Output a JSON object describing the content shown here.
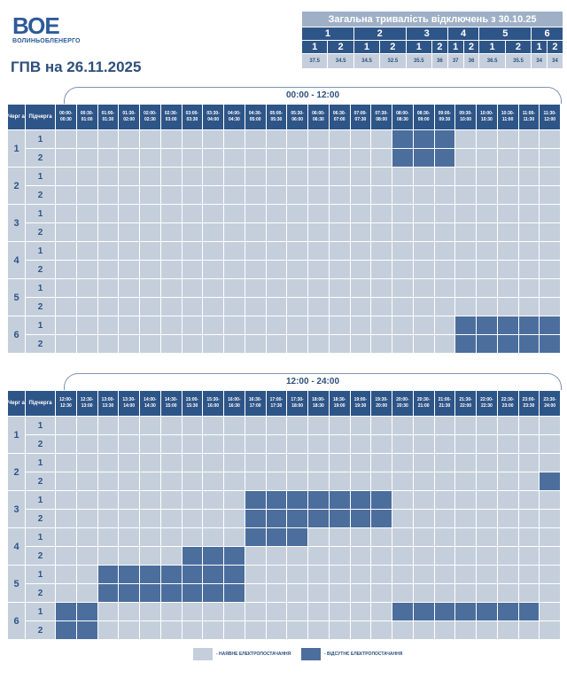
{
  "logo": {
    "mark": "ВОЕ",
    "text": "ВОЛИНЬОБЛЕНЕРГО"
  },
  "title": "ГПВ на 26.11.2025",
  "totals": {
    "caption": "Загальна тривалість відключень з 30.10.25",
    "queues": [
      "1",
      "2",
      "3",
      "4",
      "5",
      "6"
    ],
    "subqueues": [
      "1",
      "2",
      "1",
      "2",
      "1",
      "2",
      "1",
      "2",
      "1",
      "2",
      "1",
      "2"
    ],
    "values": [
      "37.5",
      "34.5",
      "34.5",
      "32.5",
      "35.5",
      "36",
      "37",
      "36",
      "36.5",
      "35.5",
      "34",
      "34"
    ]
  },
  "headers": {
    "queue": "Черг а",
    "subqueue": "Підчерга"
  },
  "sections": [
    {
      "title": "00:00 - 12:00",
      "slots": [
        "00:00- 00:30",
        "00:30- 01:00",
        "01:00- 01:30",
        "01:30- 02:00",
        "02:00- 02:30",
        "02:30- 03:00",
        "03:00- 03:30",
        "03:30- 04:00",
        "04:00- 04:30",
        "04:30- 05:00",
        "05:00- 05:30",
        "05:30- 06:00",
        "06:00- 06:30",
        "06:30- 07:00",
        "07:00- 07:30",
        "07:30- 08:00",
        "08:00- 08:30",
        "08:30- 09:00",
        "09:00- 09:30",
        "09:30- 10:00",
        "10:00- 10:30",
        "10:30- 11:00",
        "11:00- 11:30",
        "11:30- 12:00"
      ],
      "rows": [
        {
          "queue": "1",
          "sub": "1",
          "off": [
            16,
            17,
            18
          ]
        },
        {
          "queue": "1",
          "sub": "2",
          "off": [
            16,
            17,
            18
          ]
        },
        {
          "queue": "2",
          "sub": "1",
          "off": []
        },
        {
          "queue": "2",
          "sub": "2",
          "off": []
        },
        {
          "queue": "3",
          "sub": "1",
          "off": []
        },
        {
          "queue": "3",
          "sub": "2",
          "off": []
        },
        {
          "queue": "4",
          "sub": "1",
          "off": []
        },
        {
          "queue": "4",
          "sub": "2",
          "off": []
        },
        {
          "queue": "5",
          "sub": "1",
          "off": []
        },
        {
          "queue": "5",
          "sub": "2",
          "off": []
        },
        {
          "queue": "6",
          "sub": "1",
          "off": [
            19,
            20,
            21,
            22,
            23
          ]
        },
        {
          "queue": "6",
          "sub": "2",
          "off": [
            19,
            20,
            21,
            22,
            23
          ]
        }
      ]
    },
    {
      "title": "12:00 - 24:00",
      "slots": [
        "12:00- 12:30",
        "12:30- 13:00",
        "13:00- 13:30",
        "13:30- 14:00",
        "14:00- 14:30",
        "14:30- 15:00",
        "15:00- 15:30",
        "15:30- 16:00",
        "16:00- 16:30",
        "16:30- 17:00",
        "17:00- 17:30",
        "17:30- 18:00",
        "18:00- 18:30",
        "18:30- 19:00",
        "19:00- 19:30",
        "19:30- 20:00",
        "20:00- 20:30",
        "20:30- 21:00",
        "21:00- 21:30",
        "21:30- 22:00",
        "22:00- 22:30",
        "22:30- 23:00",
        "23:00- 23:30",
        "23:30- 24:00"
      ],
      "rows": [
        {
          "queue": "1",
          "sub": "1",
          "off": []
        },
        {
          "queue": "1",
          "sub": "2",
          "off": []
        },
        {
          "queue": "2",
          "sub": "1",
          "off": []
        },
        {
          "queue": "2",
          "sub": "2",
          "off": [
            23
          ]
        },
        {
          "queue": "3",
          "sub": "1",
          "off": [
            9,
            10,
            11,
            12,
            13,
            14,
            15
          ]
        },
        {
          "queue": "3",
          "sub": "2",
          "off": [
            9,
            10,
            11,
            12,
            13,
            14,
            15
          ]
        },
        {
          "queue": "4",
          "sub": "1",
          "off": [
            9,
            10,
            11
          ]
        },
        {
          "queue": "4",
          "sub": "2",
          "off": [
            6,
            7,
            8
          ]
        },
        {
          "queue": "5",
          "sub": "1",
          "off": [
            2,
            3,
            4,
            5,
            6,
            7,
            8
          ]
        },
        {
          "queue": "5",
          "sub": "2",
          "off": [
            2,
            3,
            4,
            5,
            6,
            7,
            8
          ]
        },
        {
          "queue": "6",
          "sub": "1",
          "off": [
            0,
            1,
            16,
            17,
            18,
            19,
            20,
            21,
            22
          ]
        },
        {
          "queue": "6",
          "sub": "2",
          "off": [
            0,
            1
          ]
        }
      ]
    }
  ],
  "legend": {
    "on": "- НАЯВНЕ ЕЛЕКТРОПОСТАЧАННЯ",
    "off": "- ВІДСУТНЄ ЕЛЕКТРОПОСТАЧАННЯ"
  },
  "colors": {
    "on": "#c5cfdc",
    "off": "#4b6e9d",
    "header": "#2e5587"
  }
}
